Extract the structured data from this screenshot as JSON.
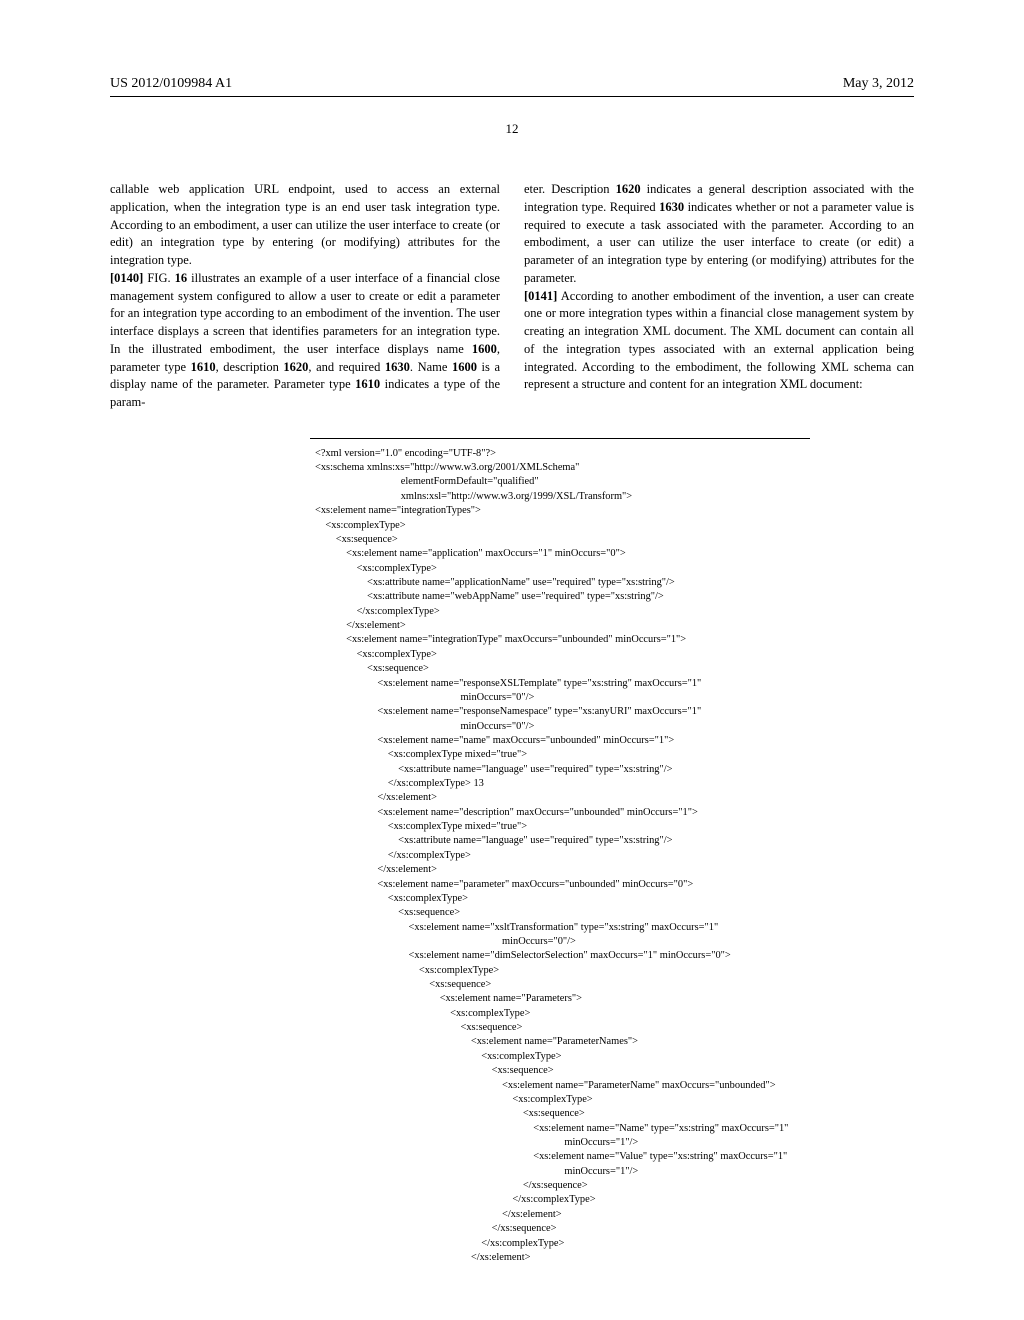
{
  "header": {
    "pub_number": "US 2012/0109984 A1",
    "pub_date": "May 3, 2012",
    "page_num": "12"
  },
  "left_col": {
    "p1": "callable web application URL endpoint, used to access an external application, when the integration type is an end user task integration type. According to an embodiment, a user can utilize the user interface to create (or edit) an integration type by entering (or modifying) attributes for the integration type.",
    "p2_num": "[0140]",
    "p2a": "    FIG. ",
    "p2b": "16",
    "p2c": " illustrates an example of a user interface of a financial close management system configured to allow a user to create or edit a parameter for an integration type according to an embodiment of the invention. The user interface displays a screen that identifies parameters for an integration type. In the illustrated embodiment, the user interface displays name ",
    "p2d": "1600",
    "p2e": ", parameter type ",
    "p2f": "1610",
    "p2g": ", description ",
    "p2h": "1620",
    "p2i": ", and required ",
    "p2j": "1630",
    "p2k": ". Name ",
    "p2l": "1600",
    "p2m": " is a display name of the parameter. Parameter type ",
    "p2n": "1610",
    "p2o": " indicates a type of the param-"
  },
  "right_col": {
    "p1a": "eter. Description ",
    "p1b": "1620",
    "p1c": " indicates a general description associated with the integration type. Required ",
    "p1d": "1630",
    "p1e": " indicates whether or not a parameter value is required to execute a task associated with the parameter. According to an embodiment, a user can utilize the user interface to create (or edit) a parameter of an integration type by entering (or modifying) attributes for the parameter.",
    "p2_num": "[0141]",
    "p2": "    According to another embodiment of the invention, a user can create one or more integration types within a financial close management system by creating an integration XML document. The XML document can contain all of the integration types associated with an external application being integrated. According to the embodiment, the following XML schema can represent a structure and content for an integration XML document:"
  },
  "code": "<?xml version=\"1.0\" encoding=\"UTF-8\"?>\n<xs:schema xmlns:xs=\"http://www.w3.org/2001/XMLSchema\"\n                                 elementFormDefault=\"qualified\"\n                                 xmlns:xsl=\"http://www.w3.org/1999/XSL/Transform\">\n<xs:element name=\"integrationTypes\">\n    <xs:complexType>\n        <xs:sequence>\n            <xs:element name=\"application\" maxOccurs=\"1\" minOccurs=\"0\">\n                <xs:complexType>\n                    <xs:attribute name=\"applicationName\" use=\"required\" type=\"xs:string\"/>\n                    <xs:attribute name=\"webAppName\" use=\"required\" type=\"xs:string\"/>\n                </xs:complexType>\n            </xs:element>\n            <xs:element name=\"integrationType\" maxOccurs=\"unbounded\" minOccurs=\"1\">\n                <xs:complexType>\n                    <xs:sequence>\n                        <xs:element name=\"responseXSLTemplate\" type=\"xs:string\" maxOccurs=\"1\"\n                                                        minOccurs=\"0\"/>\n                        <xs:element name=\"responseNamespace\" type=\"xs:anyURI\" maxOccurs=\"1\"\n                                                        minOccurs=\"0\"/>\n                        <xs:element name=\"name\" maxOccurs=\"unbounded\" minOccurs=\"1\">\n                            <xs:complexType mixed=\"true\">\n                                <xs:attribute name=\"language\" use=\"required\" type=\"xs:string\"/>\n                            </xs:complexType> 13\n                        </xs:element>\n                        <xs:element name=\"description\" maxOccurs=\"unbounded\" minOccurs=\"1\">\n                            <xs:complexType mixed=\"true\">\n                                <xs:attribute name=\"language\" use=\"required\" type=\"xs:string\"/>\n                            </xs:complexType>\n                        </xs:element>\n                        <xs:element name=\"parameter\" maxOccurs=\"unbounded\" minOccurs=\"0\">\n                            <xs:complexType>\n                                <xs:sequence>\n                                    <xs:element name=\"xsltTransformation\" type=\"xs:string\" maxOccurs=\"1\"\n                                                                        minOccurs=\"0\"/>\n                                    <xs:element name=\"dimSelectorSelection\" maxOccurs=\"1\" minOccurs=\"0\">\n                                        <xs:complexType>\n                                            <xs:sequence>\n                                                <xs:element name=\"Parameters\">\n                                                    <xs:complexType>\n                                                        <xs:sequence>\n                                                            <xs:element name=\"ParameterNames\">\n                                                                <xs:complexType>\n                                                                    <xs:sequence>\n                                                                        <xs:element name=\"ParameterName\" maxOccurs=\"unbounded\">\n                                                                            <xs:complexType>\n                                                                                <xs:sequence>\n                                                                                    <xs:element name=\"Name\" type=\"xs:string\" maxOccurs=\"1\"\n                                                                                                minOccurs=\"1\"/>\n                                                                                    <xs:element name=\"Value\" type=\"xs:string\" maxOccurs=\"1\"\n                                                                                                minOccurs=\"1\"/>\n                                                                                </xs:sequence>\n                                                                            </xs:complexType>\n                                                                        </xs:element>\n                                                                    </xs:sequence>\n                                                                </xs:complexType>\n                                                            </xs:element>"
}
